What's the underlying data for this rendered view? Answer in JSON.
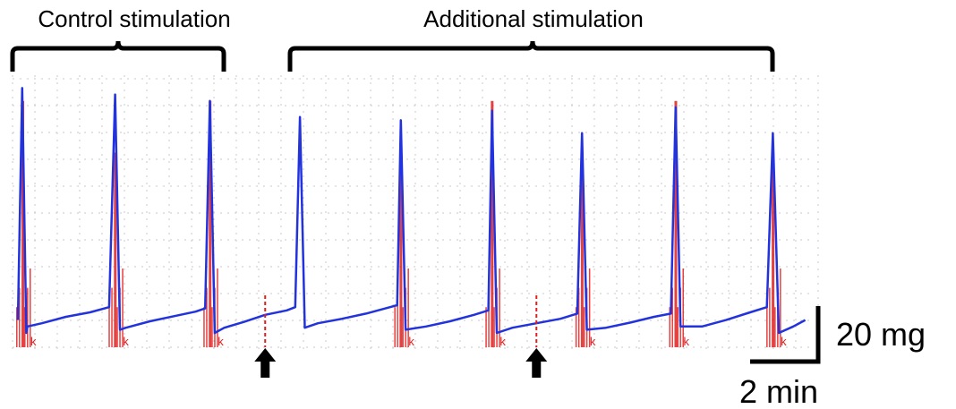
{
  "chart_data": {
    "type": "line",
    "title": "",
    "xlabel": "",
    "ylabel": "",
    "grid": true,
    "bracket_labels": [
      "Control stimulation",
      "Additional stimulation"
    ],
    "scale_bar": {
      "y_label": "20 mg",
      "x_label": "2 min"
    },
    "trace_color": "#2233dd",
    "stim_color": "#e02020",
    "event_marker_glyph": "k",
    "series": [
      {
        "values": [
          [
            0,
            2
          ],
          [
            0.18,
            38
          ],
          [
            0.35,
            0
          ],
          [
            0.4,
            1
          ],
          [
            1.0,
            1.5
          ],
          [
            2.0,
            2.5
          ],
          [
            3.0,
            3.2
          ],
          [
            3.8,
            4
          ],
          [
            4.05,
            37
          ],
          [
            4.25,
            0.5
          ],
          [
            4.5,
            0.8
          ],
          [
            5.5,
            1.8
          ],
          [
            6.5,
            2.6
          ],
          [
            7.4,
            3.3
          ],
          [
            7.8,
            3.8
          ],
          [
            8.0,
            36
          ],
          [
            8.2,
            0
          ],
          [
            8.6,
            0.8
          ],
          [
            9.4,
            1.7
          ],
          [
            10.3,
            2.8
          ],
          [
            11.2,
            3.5
          ],
          [
            11.55,
            4
          ],
          [
            11.75,
            33.5
          ],
          [
            11.95,
            0.8
          ],
          [
            12.5,
            1.5
          ],
          [
            13.5,
            2.2
          ],
          [
            14.5,
            3.0
          ],
          [
            15.5,
            4.0
          ],
          [
            15.8,
            4.3
          ],
          [
            15.95,
            33
          ],
          [
            16.15,
            0.5
          ],
          [
            17.0,
            1.0
          ],
          [
            18.0,
            1.8
          ],
          [
            19.0,
            2.8
          ],
          [
            19.6,
            3.5
          ],
          [
            19.75,
            34.5
          ],
          [
            19.95,
            0
          ],
          [
            20.6,
            0.8
          ],
          [
            21.6,
            1.5
          ],
          [
            22.6,
            2.2
          ],
          [
            23.3,
            3.0
          ],
          [
            23.5,
            31
          ],
          [
            23.7,
            0.5
          ],
          [
            24.5,
            0.8
          ],
          [
            25.5,
            1.6
          ],
          [
            26.5,
            2.5
          ],
          [
            27.2,
            3.0
          ],
          [
            27.4,
            35
          ],
          [
            27.6,
            1.0
          ],
          [
            28.5,
            1.0
          ],
          [
            29.5,
            2.0
          ],
          [
            30.5,
            3.2
          ],
          [
            31.2,
            4.0
          ],
          [
            31.45,
            31
          ],
          [
            31.7,
            0
          ],
          [
            32.3,
            1.0
          ],
          [
            32.8,
            2.0
          ]
        ]
      }
    ],
    "stimulation_bursts": [
      0.15,
      4.0,
      7.95,
      15.9,
      19.7,
      23.45,
      27.35,
      31.4
    ],
    "additional_stimulus_arrows": [
      10.3,
      21.6
    ]
  }
}
